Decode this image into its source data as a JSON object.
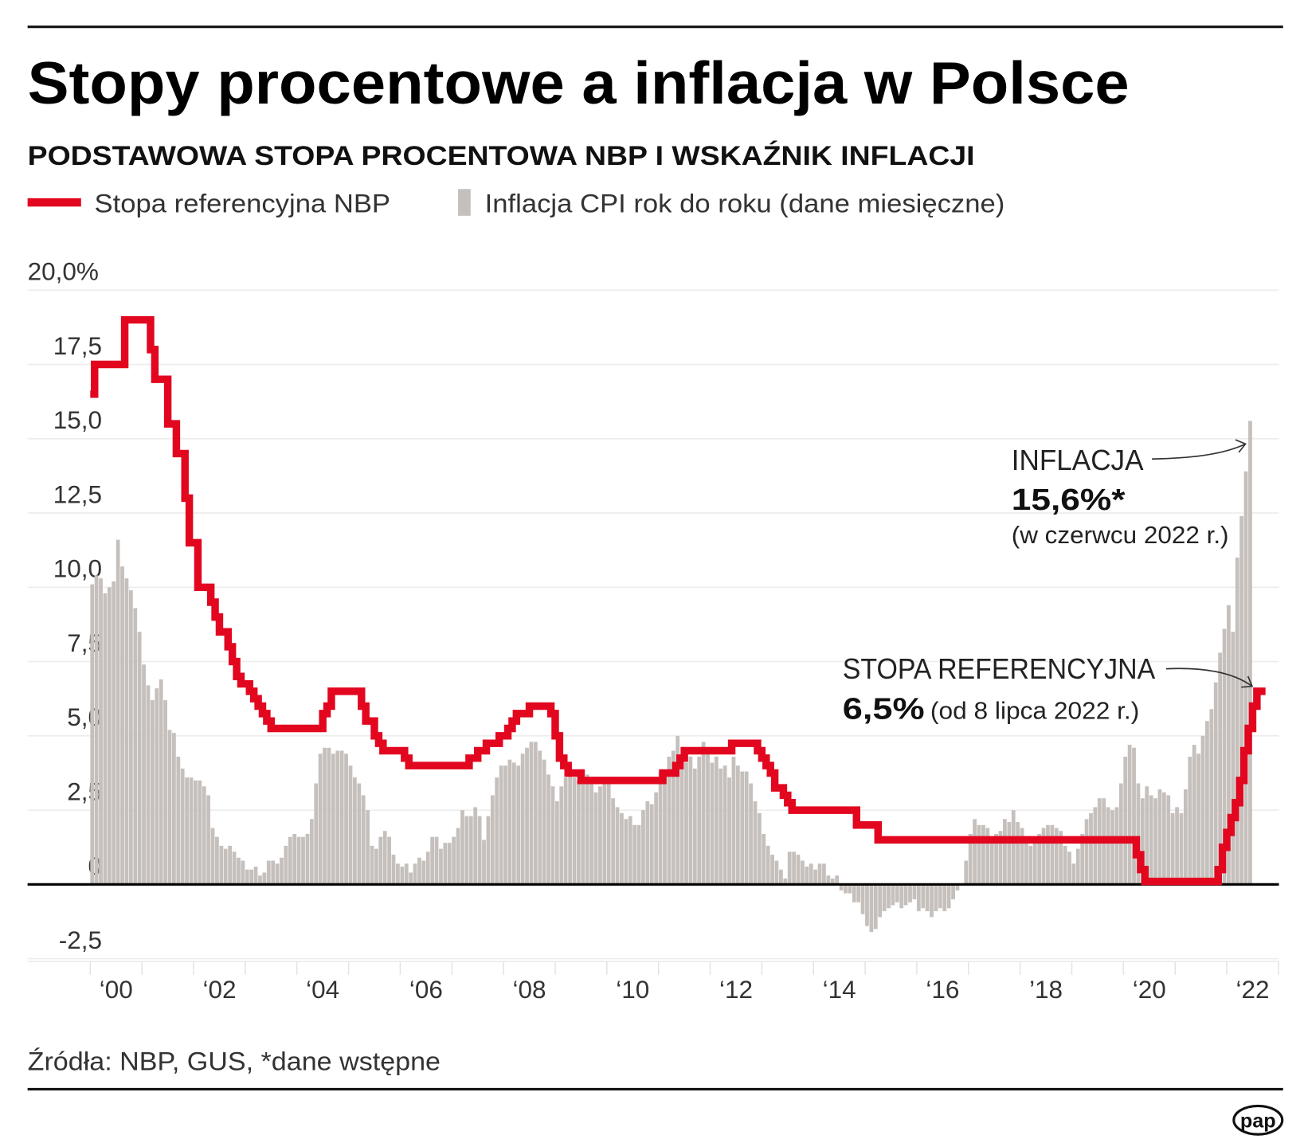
{
  "title": "Stopy procentowe a inflacja w Polsce",
  "subtitle": "PODSTAWOWA STOPA PROCENTOWA NBP I WSKAŹNIK INFLACJI",
  "source": "Źródła: NBP, GUS, *dane wstępne",
  "logo_text": "pap",
  "colors": {
    "rate": "#e2061f",
    "inflation": "#c6c0bd",
    "zero_line": "#000000",
    "grid": "#ececec"
  },
  "annotations": {
    "inflation_label": "INFLACJA",
    "inflation_value": "15,6%*",
    "inflation_note": "(w czerwcu 2022 r.)",
    "rate_label": "STOPA REFERENCYJNA",
    "rate_value": "6,5%",
    "rate_note": "(od 8 lipca 2022 r.)"
  },
  "chart_data": {
    "type": "bar",
    "title": "Stopy procentowe a inflacja w Polsce",
    "subtitle": "PODSTAWOWA STOPA PROCENTOWA NBP I WSKAŹNIK INFLACJI",
    "ylim": [
      -2.5,
      20
    ],
    "yticks": [
      "-2,5",
      "0",
      "2,5",
      "5,0",
      "7,5",
      "10,0",
      "12,5",
      "15,0",
      "17,5",
      "20,0%"
    ],
    "ytick_values": [
      -2.5,
      0,
      2.5,
      5,
      7.5,
      10,
      12.5,
      15,
      17.5,
      20
    ],
    "xticks": [
      "‘00",
      "‘02",
      "‘04",
      "‘06",
      "‘08",
      "‘10",
      "‘12",
      "‘14",
      "‘16",
      "’18",
      "‘20",
      "‘22"
    ],
    "xtick_years": [
      2000,
      2002,
      2004,
      2006,
      2008,
      2010,
      2012,
      2014,
      2016,
      2018,
      2020,
      2022
    ],
    "grid": true,
    "legend_placement": "top-left",
    "series": [
      {
        "name": "Stopa referencyjna NBP",
        "mark": "step-line",
        "end": "2022-09",
        "changes": [
          [
            "2000-01",
            16.5
          ],
          [
            "2000-02",
            17.5
          ],
          [
            "2000-09",
            19.0
          ],
          [
            "2001-03",
            18.0
          ],
          [
            "2001-04",
            17.0
          ],
          [
            "2001-07",
            15.5
          ],
          [
            "2001-09",
            14.5
          ],
          [
            "2001-11",
            13.0
          ],
          [
            "2001-12",
            11.5
          ],
          [
            "2002-02",
            10.0
          ],
          [
            "2002-05",
            9.5
          ],
          [
            "2002-06",
            9.0
          ],
          [
            "2002-07",
            8.5
          ],
          [
            "2002-09",
            8.0
          ],
          [
            "2002-10",
            7.5
          ],
          [
            "2002-11",
            7.0
          ],
          [
            "2002-12",
            6.75
          ],
          [
            "2003-02",
            6.5
          ],
          [
            "2003-03",
            6.25
          ],
          [
            "2003-04",
            6.0
          ],
          [
            "2003-05",
            5.75
          ],
          [
            "2003-06",
            5.5
          ],
          [
            "2003-07",
            5.25
          ],
          [
            "2004-07",
            5.75
          ],
          [
            "2004-08",
            6.0
          ],
          [
            "2004-09",
            6.5
          ],
          [
            "2005-04",
            6.0
          ],
          [
            "2005-05",
            5.5
          ],
          [
            "2005-07",
            5.0
          ],
          [
            "2005-08",
            4.75
          ],
          [
            "2005-09",
            4.5
          ],
          [
            "2006-02",
            4.25
          ],
          [
            "2006-03",
            4.0
          ],
          [
            "2007-05",
            4.25
          ],
          [
            "2007-07",
            4.5
          ],
          [
            "2007-09",
            4.75
          ],
          [
            "2007-12",
            5.0
          ],
          [
            "2008-02",
            5.25
          ],
          [
            "2008-03",
            5.5
          ],
          [
            "2008-04",
            5.75
          ],
          [
            "2008-07",
            6.0
          ],
          [
            "2008-12",
            5.75
          ],
          [
            "2009-01",
            5.0
          ],
          [
            "2009-02",
            4.25
          ],
          [
            "2009-03",
            4.0
          ],
          [
            "2009-04",
            3.75
          ],
          [
            "2009-07",
            3.5
          ],
          [
            "2011-02",
            3.75
          ],
          [
            "2011-05",
            4.0
          ],
          [
            "2011-06",
            4.25
          ],
          [
            "2011-07",
            4.5
          ],
          [
            "2012-06",
            4.75
          ],
          [
            "2012-12",
            4.5
          ],
          [
            "2013-01",
            4.25
          ],
          [
            "2013-02",
            4.0
          ],
          [
            "2013-03",
            3.75
          ],
          [
            "2013-04",
            3.25
          ],
          [
            "2013-06",
            3.0
          ],
          [
            "2013-07",
            2.75
          ],
          [
            "2013-08",
            2.5
          ],
          [
            "2014-11",
            2.0
          ],
          [
            "2015-04",
            1.5
          ],
          [
            "2020-04",
            1.0
          ],
          [
            "2020-05",
            0.5
          ],
          [
            "2020-06",
            0.1
          ],
          [
            "2021-11",
            0.5
          ],
          [
            "2021-12",
            1.25
          ],
          [
            "2022-01",
            1.75
          ],
          [
            "2022-02",
            2.25
          ],
          [
            "2022-03",
            2.75
          ],
          [
            "2022-04",
            3.5
          ],
          [
            "2022-05",
            4.5
          ],
          [
            "2022-06",
            5.25
          ],
          [
            "2022-07",
            6.0
          ],
          [
            "2022-08",
            6.5
          ]
        ]
      },
      {
        "name": "Inflacja CPI rok do roku (dane miesięczne)",
        "mark": "bar",
        "start": "2000-01",
        "values": [
          10.1,
          10.4,
          10.3,
          9.8,
          10.0,
          10.2,
          11.6,
          10.7,
          10.3,
          9.9,
          9.3,
          8.5,
          7.4,
          6.7,
          6.2,
          6.6,
          6.9,
          6.2,
          5.2,
          5.1,
          4.3,
          3.9,
          3.6,
          3.6,
          3.5,
          3.5,
          3.3,
          3.0,
          1.9,
          1.6,
          1.3,
          1.2,
          1.3,
          1.1,
          0.9,
          0.8,
          0.5,
          0.5,
          0.6,
          0.3,
          0.4,
          0.8,
          0.8,
          0.7,
          0.9,
          1.3,
          1.6,
          1.7,
          1.6,
          1.6,
          1.7,
          2.2,
          3.4,
          4.4,
          4.6,
          4.6,
          4.4,
          4.5,
          4.5,
          4.4,
          4.0,
          3.6,
          3.4,
          3.0,
          2.5,
          1.3,
          1.2,
          1.6,
          1.8,
          1.6,
          1.0,
          0.7,
          0.6,
          0.7,
          0.4,
          0.7,
          0.9,
          0.8,
          1.1,
          1.6,
          1.6,
          1.2,
          1.4,
          1.4,
          1.6,
          1.9,
          2.5,
          2.3,
          2.3,
          2.6,
          2.3,
          1.5,
          2.3,
          3.0,
          3.6,
          4.0,
          4.0,
          4.2,
          4.1,
          4.0,
          4.4,
          4.6,
          4.8,
          4.8,
          4.5,
          4.2,
          3.7,
          3.3,
          2.8,
          3.3,
          3.6,
          4.0,
          3.6,
          3.5,
          3.6,
          3.7,
          3.4,
          3.1,
          3.3,
          3.5,
          3.5,
          2.9,
          2.6,
          2.4,
          2.2,
          2.3,
          2.0,
          2.0,
          2.5,
          2.8,
          2.7,
          3.1,
          3.8,
          3.6,
          4.3,
          4.5,
          5.0,
          4.2,
          4.1,
          4.3,
          3.9,
          4.3,
          4.8,
          4.6,
          4.1,
          4.3,
          3.9,
          4.0,
          3.6,
          4.3,
          4.0,
          3.8,
          3.8,
          3.4,
          2.8,
          2.4,
          1.7,
          1.3,
          1.0,
          0.8,
          0.5,
          0.2,
          1.1,
          1.1,
          1.0,
          0.8,
          0.6,
          0.7,
          0.5,
          0.7,
          0.7,
          0.3,
          0.2,
          0.3,
          -0.2,
          -0.3,
          -0.3,
          -0.6,
          -0.6,
          -1.0,
          -1.4,
          -1.6,
          -1.5,
          -1.1,
          -0.9,
          -0.8,
          -0.7,
          -0.6,
          -0.8,
          -0.7,
          -0.6,
          -0.5,
          -0.9,
          -0.8,
          -0.9,
          -1.1,
          -0.9,
          -0.8,
          -0.9,
          -0.8,
          -0.5,
          -0.2,
          0.0,
          0.8,
          1.7,
          2.2,
          2.0,
          2.0,
          1.9,
          1.5,
          1.7,
          1.8,
          2.2,
          2.1,
          2.5,
          2.1,
          1.9,
          1.4,
          1.3,
          1.6,
          1.7,
          1.9,
          2.0,
          2.0,
          1.9,
          1.8,
          1.3,
          1.1,
          0.7,
          1.2,
          1.7,
          2.2,
          2.4,
          2.6,
          2.9,
          2.9,
          2.6,
          2.5,
          2.6,
          3.4,
          4.3,
          4.7,
          4.6,
          3.4,
          2.9,
          3.3,
          3.0,
          2.9,
          3.2,
          3.1,
          3.0,
          2.4,
          2.6,
          2.4,
          3.2,
          4.3,
          4.7,
          4.4,
          5.0,
          5.5,
          5.9,
          6.8,
          7.8,
          8.6,
          9.4,
          8.5,
          11.0,
          12.4,
          13.9,
          15.6
        ]
      }
    ]
  }
}
